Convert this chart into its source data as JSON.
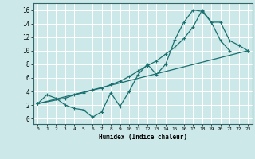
{
  "xlabel": "Humidex (Indice chaleur)",
  "background_color": "#cce8e8",
  "grid_color": "#aacccc",
  "line_color": "#1a7070",
  "xlim": [
    -0.5,
    23.5
  ],
  "ylim": [
    -0.8,
    17
  ],
  "xticks": [
    0,
    1,
    2,
    3,
    4,
    5,
    6,
    7,
    8,
    9,
    10,
    11,
    12,
    13,
    14,
    15,
    16,
    17,
    18,
    19,
    20,
    21,
    22,
    23
  ],
  "yticks": [
    0,
    2,
    4,
    6,
    8,
    10,
    12,
    14,
    16
  ],
  "line1_x": [
    0,
    1,
    2,
    3,
    4,
    5,
    6,
    7,
    8,
    9,
    10,
    11,
    12,
    13,
    14,
    15,
    16,
    17,
    18,
    19,
    20,
    21
  ],
  "line1_y": [
    2.2,
    3.5,
    3.0,
    2.0,
    1.5,
    1.3,
    0.2,
    1.0,
    3.8,
    1.8,
    4.0,
    6.5,
    8.0,
    6.5,
    8.0,
    11.6,
    14.2,
    16.0,
    15.8,
    14.2,
    11.5,
    10.0
  ],
  "line2_x": [
    0,
    3,
    4,
    5,
    6,
    7,
    8,
    9,
    10,
    11,
    12,
    13,
    14,
    15,
    16,
    17,
    18,
    19,
    20,
    21,
    22,
    23
  ],
  "line2_y": [
    2.2,
    3.0,
    3.5,
    3.8,
    4.2,
    4.5,
    5.0,
    5.5,
    6.2,
    7.0,
    7.8,
    8.5,
    9.5,
    10.5,
    11.8,
    13.5,
    16.0,
    14.2,
    14.2,
    11.5,
    10.8,
    10.0
  ],
  "line3_x": [
    0,
    23
  ],
  "line3_y": [
    2.2,
    10.0
  ]
}
